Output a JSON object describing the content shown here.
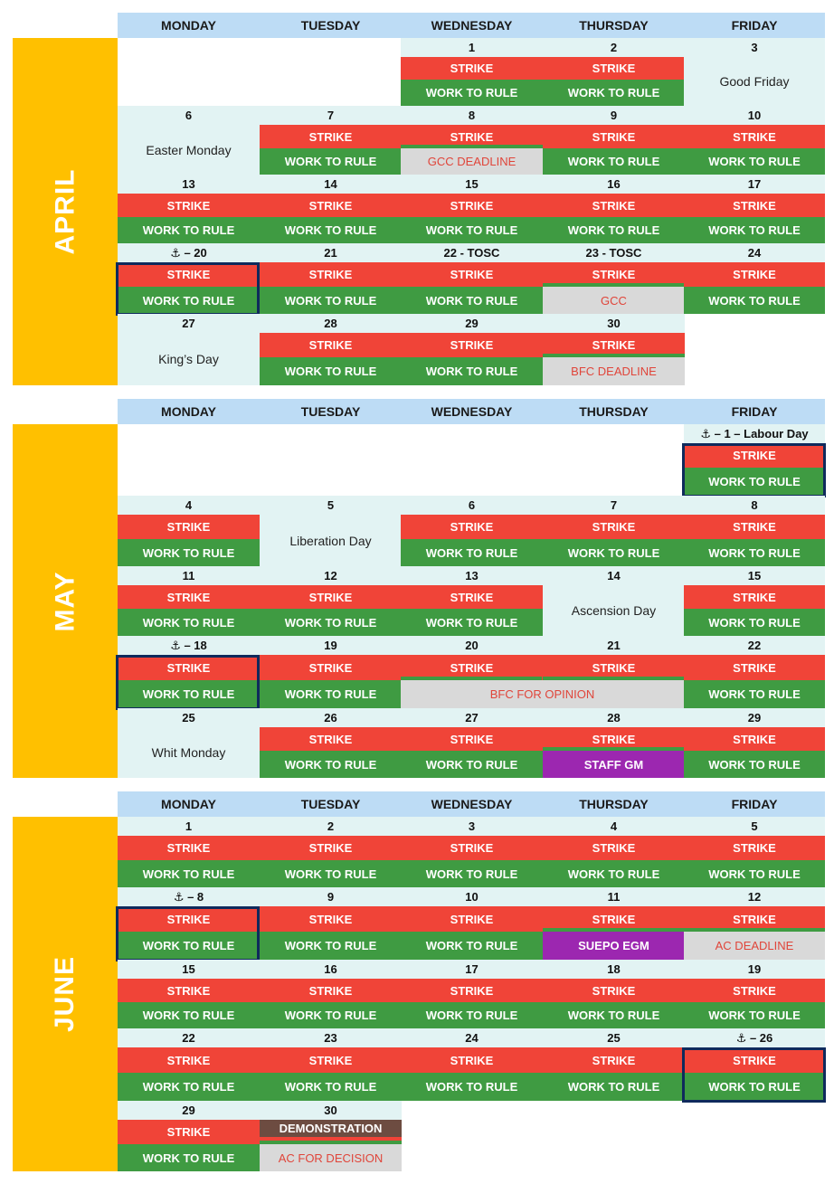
{
  "weekdays": [
    "MONDAY",
    "TUESDAY",
    "WEDNESDAY",
    "THURSDAY",
    "FRIDAY"
  ],
  "labels": {
    "strike": "STRIKE",
    "work_to_rule": "WORK TO RULE"
  },
  "colors": {
    "month_bar": "#ffc000",
    "header": "#bddcf5",
    "cell": "#e2f3f3",
    "strike": "#f04438",
    "work_to_rule": "#3f9b42",
    "deadline_bg": "#d9d9d9",
    "deadline_text": "#e0453a",
    "meeting": "#9c27b0",
    "demonstration": "#6d4c41",
    "highlight_border": "#0f2a5c"
  },
  "icons": {
    "anchor": "⚓"
  },
  "months": [
    {
      "name": "APRIL",
      "weeks": [
        [
          null,
          null,
          {
            "num": "1",
            "strike": true,
            "rule": true
          },
          {
            "num": "2",
            "strike": true,
            "rule": true
          },
          {
            "num": "3",
            "holiday": "Good Friday"
          }
        ],
        [
          {
            "num": "6",
            "holiday": "Easter Monday"
          },
          {
            "num": "7",
            "strike": true,
            "rule": true
          },
          {
            "num": "8",
            "strike": true,
            "event": {
              "text": "GCC DEADLINE",
              "kind": "gray"
            }
          },
          {
            "num": "9",
            "strike": true,
            "rule": true
          },
          {
            "num": "10",
            "strike": true,
            "rule": true
          }
        ],
        [
          {
            "num": "13",
            "strike": true,
            "rule": true
          },
          {
            "num": "14",
            "strike": true,
            "rule": true
          },
          {
            "num": "15",
            "strike": true,
            "rule": true
          },
          {
            "num": "16",
            "strike": true,
            "rule": true
          },
          {
            "num": "17",
            "strike": true,
            "rule": true
          }
        ],
        [
          {
            "num": "⚓ – 20",
            "strike": true,
            "rule": true,
            "highlight": true
          },
          {
            "num": "21",
            "strike": true,
            "rule": true
          },
          {
            "num": "22 - TOSC",
            "strike": true,
            "rule": true
          },
          {
            "num": "23 - TOSC",
            "strike": true,
            "event": {
              "text": "GCC",
              "kind": "gray"
            }
          },
          {
            "num": "24",
            "strike": true,
            "rule": true
          }
        ],
        [
          {
            "num": "27",
            "holiday": "King’s Day"
          },
          {
            "num": "28",
            "strike": true,
            "rule": true
          },
          {
            "num": "29",
            "strike": true,
            "rule": true
          },
          {
            "num": "30",
            "strike": true,
            "event": {
              "text": "BFC DEADLINE",
              "kind": "gray"
            }
          },
          null
        ]
      ]
    },
    {
      "name": "MAY",
      "weeks": [
        [
          null,
          null,
          null,
          null,
          {
            "num": "⚓ – 1 – Labour Day",
            "strike": true,
            "rule": true,
            "highlight": true
          }
        ],
        [
          {
            "num": "4",
            "strike": true,
            "rule": true
          },
          {
            "num": "5",
            "holiday": "Liberation Day"
          },
          {
            "num": "6",
            "strike": true,
            "rule": true
          },
          {
            "num": "7",
            "strike": true,
            "rule": true
          },
          {
            "num": "8",
            "strike": true,
            "rule": true
          }
        ],
        [
          {
            "num": "11",
            "strike": true,
            "rule": true
          },
          {
            "num": "12",
            "strike": true,
            "rule": true
          },
          {
            "num": "13",
            "strike": true,
            "rule": true
          },
          {
            "num": "14",
            "holiday": "Ascension Day"
          },
          {
            "num": "15",
            "strike": true,
            "rule": true
          }
        ],
        [
          {
            "num": "⚓ – 18",
            "strike": true,
            "rule": true,
            "highlight": true
          },
          {
            "num": "19",
            "strike": true,
            "rule": true
          },
          {
            "num": "20",
            "strike": true
          },
          {
            "num": "21",
            "strike": true
          },
          {
            "num": "22",
            "strike": true,
            "rule": true
          }
        ],
        [
          {
            "num": "25",
            "holiday": "Whit Monday"
          },
          {
            "num": "26",
            "strike": true,
            "rule": true
          },
          {
            "num": "27",
            "strike": true,
            "rule": true
          },
          {
            "num": "28",
            "strike": true,
            "event": {
              "text": "STAFF GM",
              "kind": "purple"
            }
          },
          {
            "num": "29",
            "strike": true,
            "rule": true
          }
        ]
      ],
      "spans": [
        {
          "week": 3,
          "from": 2,
          "to": 3,
          "text": "BFC FOR OPINION",
          "kind": "gray"
        }
      ]
    },
    {
      "name": "JUNE",
      "weeks": [
        [
          {
            "num": "1",
            "strike": true,
            "rule": true
          },
          {
            "num": "2",
            "strike": true,
            "rule": true
          },
          {
            "num": "3",
            "strike": true,
            "rule": true
          },
          {
            "num": "4",
            "strike": true,
            "rule": true
          },
          {
            "num": "5",
            "strike": true,
            "rule": true
          }
        ],
        [
          {
            "num": "⚓ – 8",
            "strike": true,
            "rule": true,
            "highlight": true
          },
          {
            "num": "9",
            "strike": true,
            "rule": true
          },
          {
            "num": "10",
            "strike": true,
            "rule": true
          },
          {
            "num": "11",
            "strike": true,
            "event": {
              "text": "SUEPO EGM",
              "kind": "purple"
            }
          },
          {
            "num": "12",
            "strike": true,
            "event": {
              "text": "AC DEADLINE",
              "kind": "gray"
            }
          }
        ],
        [
          {
            "num": "15",
            "strike": true,
            "rule": true
          },
          {
            "num": "16",
            "strike": true,
            "rule": true
          },
          {
            "num": "17",
            "strike": true,
            "rule": true
          },
          {
            "num": "18",
            "strike": true,
            "rule": true
          },
          {
            "num": "19",
            "strike": true,
            "rule": true
          }
        ],
        [
          {
            "num": "22",
            "strike": true,
            "rule": true
          },
          {
            "num": "23",
            "strike": true,
            "rule": true
          },
          {
            "num": "24",
            "strike": true,
            "rule": true
          },
          {
            "num": "25",
            "strike": true,
            "rule": true
          },
          {
            "num": "⚓ – 26",
            "strike": true,
            "rule": true,
            "highlight": true
          }
        ],
        [
          {
            "num": "29",
            "strike": true,
            "rule": true
          },
          {
            "num": "30",
            "top_event": {
              "text": "DEMONSTRATION",
              "kind": "brown"
            },
            "event": {
              "text": "AC FOR DECISION",
              "kind": "gray"
            }
          },
          null,
          null,
          null
        ]
      ]
    }
  ]
}
